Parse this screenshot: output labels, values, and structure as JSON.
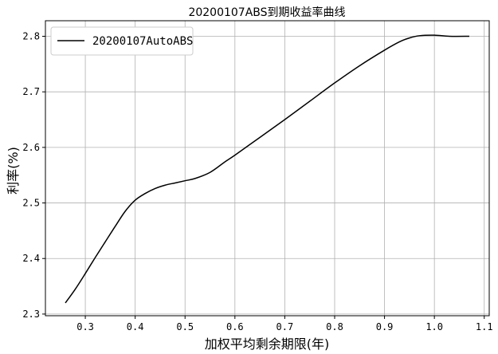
{
  "chart_data": {
    "type": "line",
    "title": "20200107ABS到期收益率曲线",
    "xlabel": "加权平均剩余期限(年)",
    "ylabel": "利率(%)",
    "xlim": [
      0.22,
      1.11
    ],
    "ylim": [
      2.297,
      2.828
    ],
    "xticks": [
      0.3,
      0.4,
      0.5,
      0.6,
      0.7,
      0.8,
      0.9,
      1.0,
      1.1
    ],
    "xtick_labels": [
      "0.3",
      "0.4",
      "0.5",
      "0.6",
      "0.7",
      "0.8",
      "0.9",
      "1.0",
      "1.1"
    ],
    "yticks": [
      2.3,
      2.4,
      2.5,
      2.6,
      2.7,
      2.8
    ],
    "ytick_labels": [
      "2.3",
      "2.4",
      "2.5",
      "2.6",
      "2.7",
      "2.8"
    ],
    "grid": true,
    "legend_position": "top-left",
    "series": [
      {
        "name": "20200107AutoABS",
        "color": "#000000",
        "x": [
          0.26,
          0.28,
          0.3,
          0.32,
          0.34,
          0.36,
          0.38,
          0.4,
          0.42,
          0.44,
          0.46,
          0.48,
          0.5,
          0.52,
          0.55,
          0.58,
          0.6,
          0.65,
          0.7,
          0.75,
          0.8,
          0.85,
          0.9,
          0.93,
          0.95,
          0.97,
          1.0,
          1.03,
          1.07
        ],
        "y": [
          2.32,
          2.345,
          2.373,
          2.402,
          2.43,
          2.458,
          2.485,
          2.505,
          2.517,
          2.526,
          2.532,
          2.536,
          2.54,
          2.544,
          2.555,
          2.574,
          2.586,
          2.618,
          2.65,
          2.683,
          2.716,
          2.747,
          2.775,
          2.79,
          2.797,
          2.801,
          2.802,
          2.8,
          2.8
        ]
      }
    ]
  }
}
